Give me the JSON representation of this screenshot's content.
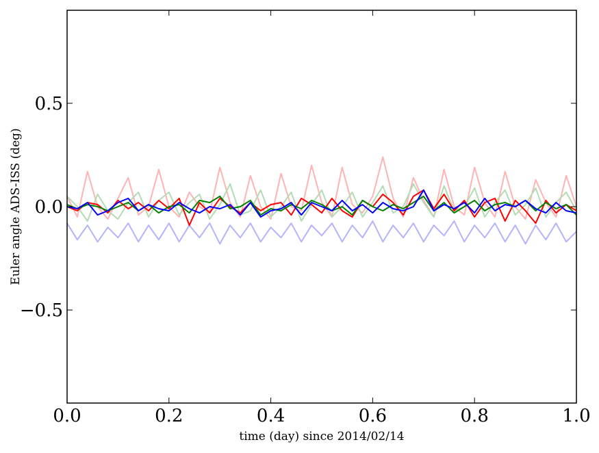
{
  "chart_data": {
    "type": "line",
    "title": "",
    "xlabel": "time (day) since 2014/02/14",
    "ylabel": "Euler angle ADS-ISS (deg)",
    "xlim": [
      0.0,
      1.0
    ],
    "ylim": [
      -0.95,
      0.95
    ],
    "x_ticks": [
      0.0,
      0.2,
      0.4,
      0.6,
      0.8,
      1.0
    ],
    "x_tick_labels": [
      "0.0",
      "0.2",
      "0.4",
      "0.6",
      "0.8",
      "1.0"
    ],
    "y_ticks": [
      -0.5,
      0.0,
      0.5
    ],
    "y_tick_labels": [
      "−0.5",
      "0.0",
      "0.5"
    ],
    "grid": false,
    "legend": "none",
    "x": [
      0.0,
      0.02,
      0.04,
      0.06,
      0.08,
      0.1,
      0.12,
      0.14,
      0.16,
      0.18,
      0.2,
      0.22,
      0.24,
      0.26,
      0.28,
      0.3,
      0.32,
      0.34,
      0.36,
      0.38,
      0.4,
      0.42,
      0.44,
      0.46,
      0.48,
      0.5,
      0.52,
      0.54,
      0.56,
      0.58,
      0.6,
      0.62,
      0.64,
      0.66,
      0.68,
      0.7,
      0.72,
      0.74,
      0.76,
      0.78,
      0.8,
      0.82,
      0.84,
      0.86,
      0.88,
      0.9,
      0.92,
      0.94,
      0.96,
      0.98,
      1.0
    ],
    "series": [
      {
        "color": "#ffb3b3",
        "values": [
          0.05,
          -0.05,
          0.17,
          0.0,
          -0.06,
          0.04,
          0.14,
          -0.04,
          0.0,
          0.18,
          0.0,
          -0.05,
          0.07,
          0.0,
          -0.03,
          0.19,
          0.02,
          -0.05,
          0.15,
          0.0,
          -0.06,
          0.16,
          0.0,
          -0.02,
          0.2,
          0.02,
          -0.05,
          0.19,
          0.01,
          -0.03,
          0.05,
          0.24,
          0.04,
          -0.05,
          0.14,
          0.03,
          -0.05,
          0.18,
          0.0,
          -0.04,
          0.19,
          0.02,
          -0.05,
          0.17,
          0.0,
          -0.06,
          0.13,
          0.02,
          -0.05,
          0.15,
          0.0
        ]
      },
      {
        "color": "#b3dcb3",
        "values": [
          0.05,
          0.0,
          -0.07,
          0.06,
          -0.02,
          -0.06,
          0.02,
          0.07,
          -0.05,
          0.03,
          0.07,
          -0.04,
          0.02,
          0.06,
          -0.06,
          0.01,
          0.11,
          -0.04,
          -0.02,
          0.08,
          -0.05,
          0.0,
          0.07,
          -0.07,
          0.01,
          0.08,
          -0.05,
          0.0,
          0.07,
          -0.05,
          0.02,
          0.1,
          -0.03,
          0.0,
          0.11,
          0.02,
          -0.05,
          0.1,
          -0.02,
          0.0,
          0.09,
          -0.05,
          0.02,
          0.08,
          -0.04,
          0.01,
          0.09,
          -0.05,
          0.02,
          0.07,
          -0.02
        ]
      },
      {
        "color": "#b3b3ff",
        "values": [
          -0.08,
          -0.16,
          -0.09,
          -0.17,
          -0.1,
          -0.15,
          -0.08,
          -0.17,
          -0.09,
          -0.16,
          -0.08,
          -0.17,
          -0.09,
          -0.15,
          -0.08,
          -0.18,
          -0.09,
          -0.15,
          -0.08,
          -0.17,
          -0.1,
          -0.15,
          -0.08,
          -0.17,
          -0.09,
          -0.14,
          -0.08,
          -0.17,
          -0.09,
          -0.15,
          -0.07,
          -0.17,
          -0.09,
          -0.15,
          -0.08,
          -0.17,
          -0.09,
          -0.14,
          -0.07,
          -0.17,
          -0.09,
          -0.15,
          -0.08,
          -0.17,
          -0.09,
          -0.18,
          -0.09,
          -0.16,
          -0.08,
          -0.17,
          -0.12
        ]
      },
      {
        "color": "#ff0000",
        "values": [
          0.0,
          -0.02,
          0.02,
          0.01,
          -0.03,
          0.03,
          -0.01,
          0.02,
          -0.02,
          0.03,
          -0.01,
          0.04,
          -0.09,
          0.02,
          -0.03,
          0.04,
          0.0,
          -0.03,
          0.02,
          -0.02,
          0.01,
          0.02,
          -0.04,
          0.04,
          0.01,
          -0.03,
          0.04,
          -0.02,
          -0.05,
          0.03,
          0.0,
          0.06,
          0.02,
          -0.04,
          0.05,
          0.08,
          -0.01,
          0.06,
          -0.02,
          0.03,
          -0.05,
          0.02,
          0.04,
          -0.07,
          0.03,
          -0.02,
          -0.08,
          0.03,
          -0.03,
          0.01,
          -0.02
        ]
      },
      {
        "color": "#008000",
        "values": [
          0.01,
          -0.01,
          0.01,
          0.0,
          -0.02,
          0.0,
          0.02,
          -0.02,
          0.01,
          -0.03,
          0.0,
          0.01,
          -0.03,
          0.03,
          0.02,
          0.05,
          -0.01,
          0.0,
          0.03,
          -0.04,
          -0.01,
          -0.02,
          0.01,
          -0.01,
          0.03,
          0.01,
          -0.02,
          0.0,
          -0.04,
          0.03,
          0.0,
          -0.02,
          0.01,
          -0.01,
          0.02,
          0.05,
          -0.02,
          0.02,
          -0.03,
          0.0,
          0.03,
          -0.02,
          0.01,
          0.02,
          0.0,
          0.03,
          -0.02,
          0.02,
          -0.01,
          0.01,
          -0.04
        ]
      },
      {
        "color": "#0000ff",
        "values": [
          0.0,
          -0.01,
          0.02,
          -0.04,
          -0.02,
          0.02,
          0.04,
          -0.02,
          0.01,
          -0.01,
          -0.02,
          0.02,
          -0.01,
          -0.03,
          0.0,
          -0.01,
          0.01,
          -0.04,
          0.02,
          -0.05,
          -0.02,
          -0.01,
          0.02,
          -0.04,
          0.02,
          0.0,
          -0.02,
          0.03,
          -0.02,
          0.01,
          -0.03,
          0.02,
          -0.01,
          -0.02,
          0.0,
          0.08,
          -0.02,
          0.01,
          -0.01,
          0.02,
          -0.03,
          0.04,
          -0.02,
          0.01,
          0.0,
          0.03,
          -0.01,
          -0.03,
          0.02,
          -0.02,
          -0.03
        ]
      }
    ]
  }
}
